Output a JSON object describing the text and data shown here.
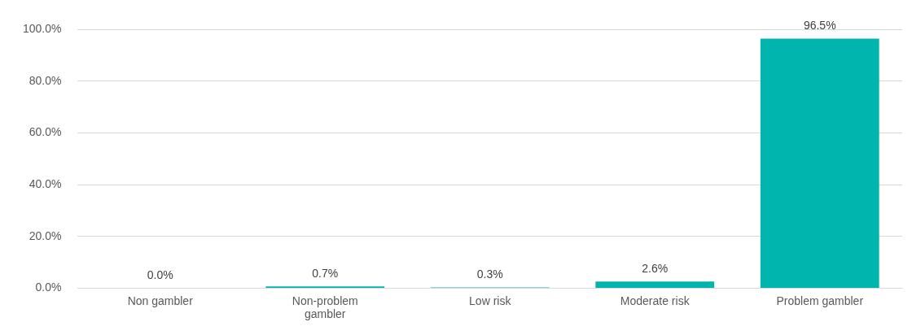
{
  "chart_data": {
    "type": "bar",
    "categories": [
      "Non gambler",
      "Non-problem gambler",
      "Low risk",
      "Moderate risk",
      "Problem gambler"
    ],
    "values": [
      0.0,
      0.7,
      0.3,
      2.6,
      96.5
    ],
    "value_labels": [
      "0.0%",
      "0.7%",
      "0.3%",
      "2.6%",
      "96.5%"
    ],
    "color": "#00b5ad",
    "ylim": [
      0,
      100
    ],
    "yticks": [
      {
        "value": 0,
        "label": "0.0%"
      },
      {
        "value": 20,
        "label": "20.0%"
      },
      {
        "value": 40,
        "label": "40.0%"
      },
      {
        "value": 60,
        "label": "60.0%"
      },
      {
        "value": 80,
        "label": "80.0%"
      },
      {
        "value": 100,
        "label": "100.0%"
      }
    ],
    "grid": "y",
    "legend": false
  }
}
